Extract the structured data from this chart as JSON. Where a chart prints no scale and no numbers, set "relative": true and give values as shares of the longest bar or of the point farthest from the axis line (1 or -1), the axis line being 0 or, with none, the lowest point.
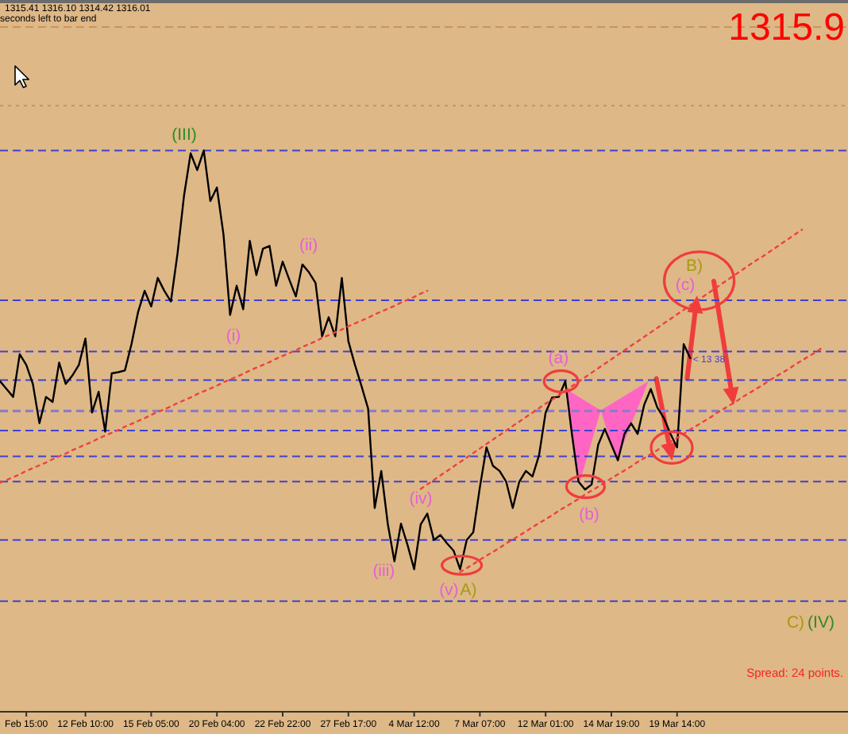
{
  "chart_data": {
    "type": "line",
    "relative": true,
    "marker": "none",
    "line_style": "solid",
    "categories": [
      null,
      null,
      null,
      null,
      "Feb 15:00",
      null,
      null,
      null,
      null,
      null,
      null,
      null,
      null,
      "12 Feb 10:00",
      null,
      null,
      null,
      null,
      null,
      null,
      null,
      null,
      null,
      "15 Feb 05:00",
      null,
      null,
      null,
      null,
      null,
      null,
      null,
      null,
      null,
      "20 Feb 04:00",
      null,
      null,
      null,
      null,
      null,
      null,
      null,
      null,
      null,
      "22 Feb 22:00",
      null,
      null,
      null,
      null,
      null,
      null,
      null,
      null,
      null,
      "27 Feb 17:00",
      null,
      null,
      null,
      null,
      null,
      null,
      null,
      null,
      null,
      "4 Mar 12:00",
      null,
      null,
      null,
      null,
      null,
      null,
      null,
      null,
      null,
      "7 Mar 07:00",
      null,
      null,
      null,
      null,
      null,
      null,
      null,
      null,
      null,
      "12 Mar 01:00",
      null,
      null,
      null,
      null,
      null,
      null,
      null,
      null,
      null,
      "14 Mar 19:00",
      null,
      null,
      null,
      null,
      null,
      null,
      null,
      null,
      null,
      "19 Mar 14:00",
      null,
      null,
      null,
      null,
      null,
      null,
      null,
      null,
      null,
      null,
      null,
      null,
      null,
      null,
      null,
      null,
      null,
      null,
      null,
      null,
      null,
      null,
      null,
      null,
      null,
      null
    ],
    "series": [
      {
        "color": "#000000",
        "values": [
          0.589,
          0.575,
          0.561,
          0.637,
          0.618,
          0.584,
          0.514,
          0.561,
          0.552,
          0.622,
          0.584,
          0.599,
          0.618,
          0.665,
          0.533,
          0.57,
          0.499,
          0.603,
          0.605,
          0.608,
          0.655,
          0.712,
          0.75,
          0.722,
          0.773,
          0.75,
          0.731,
          0.816,
          0.92,
          0.995,
          0.965,
          1.0,
          0.91,
          0.934,
          0.85,
          0.707,
          0.759,
          0.717,
          0.839,
          0.778,
          0.825,
          0.83,
          0.759,
          0.802,
          0.77,
          0.74,
          0.797,
          0.783,
          0.764,
          0.669,
          0.703,
          0.669,
          0.773,
          0.66,
          0.618,
          0.58,
          0.54,
          0.363,
          0.429,
          0.334,
          0.268,
          0.335,
          0.297,
          0.254,
          0.334,
          0.353,
          0.306,
          0.315,
          0.3,
          0.287,
          0.254,
          0.306,
          0.32,
          0.4,
          0.471,
          0.438,
          0.429,
          0.41,
          0.363,
          0.41,
          0.429,
          0.419,
          0.457,
          0.533,
          0.56,
          0.561,
          0.589,
          0.495,
          0.41,
          0.396,
          0.405,
          0.476,
          0.504,
          0.476,
          0.448,
          0.495,
          0.514,
          0.495,
          0.547,
          0.575,
          0.542,
          0.523,
          0.495,
          0.471,
          0.655,
          0.63,
          null,
          null,
          null,
          null,
          null,
          null,
          null,
          null,
          null,
          null,
          null,
          null,
          null,
          null,
          null,
          null,
          null,
          null,
          null,
          null,
          null,
          null,
          null,
          null
        ]
      },
      {
        "type": "line",
        "color": "#f04040",
        "line_style": "dotted",
        "values": [
          0.408,
          0.413,
          0.418,
          0.423,
          0.429,
          0.434,
          0.439,
          0.444,
          0.45,
          0.455,
          0.46,
          0.466,
          0.471,
          0.476,
          0.481,
          0.487,
          0.492,
          0.497,
          0.502,
          0.508,
          0.513,
          0.518,
          0.523,
          0.529,
          0.534,
          0.539,
          0.544,
          0.55,
          0.555,
          0.56,
          0.566,
          0.571,
          0.576,
          0.581,
          0.587,
          0.592,
          0.597,
          0.602,
          0.608,
          0.613,
          0.618,
          0.623,
          0.629,
          0.634,
          0.639,
          0.644,
          0.65,
          0.655,
          0.66,
          0.666,
          0.671,
          0.676,
          0.681,
          0.687,
          0.692,
          0.697,
          0.702,
          0.708,
          0.713,
          0.718,
          0.723,
          0.729,
          0.734,
          0.739,
          0.745,
          0.75,
          null,
          null,
          null,
          null,
          null,
          null,
          null,
          null,
          null,
          null,
          null,
          null,
          null,
          null,
          null,
          null,
          null,
          null,
          null,
          null,
          null,
          null,
          null,
          null,
          null,
          null,
          null,
          null,
          null,
          null,
          null,
          null,
          null,
          null,
          null,
          null,
          null,
          null,
          null,
          null,
          null,
          null,
          null,
          null,
          null,
          null,
          null,
          null,
          null,
          null,
          null,
          null,
          null,
          null,
          null,
          null,
          null,
          null,
          null,
          null,
          null,
          null,
          null,
          null
        ]
      },
      {
        "type": "line",
        "color": "#f04040",
        "line_style": "dotted",
        "values": [
          null,
          null,
          null,
          null,
          null,
          null,
          null,
          null,
          null,
          null,
          null,
          null,
          null,
          null,
          null,
          null,
          null,
          null,
          null,
          null,
          null,
          null,
          null,
          null,
          null,
          null,
          null,
          null,
          null,
          null,
          null,
          null,
          null,
          null,
          null,
          null,
          null,
          null,
          null,
          null,
          null,
          null,
          null,
          null,
          null,
          null,
          null,
          null,
          null,
          null,
          null,
          null,
          null,
          null,
          null,
          null,
          null,
          null,
          null,
          null,
          null,
          null,
          null,
          null,
          0.397,
          0.405,
          0.413,
          0.421,
          0.429,
          0.437,
          0.445,
          0.453,
          0.461,
          0.469,
          0.477,
          0.485,
          0.493,
          0.501,
          0.509,
          0.517,
          0.525,
          0.533,
          0.541,
          0.549,
          0.556,
          0.564,
          0.572,
          0.58,
          0.588,
          0.596,
          0.604,
          0.612,
          0.62,
          0.628,
          0.636,
          0.644,
          0.652,
          0.66,
          0.668,
          0.676,
          0.684,
          0.692,
          0.7,
          0.708,
          0.716,
          0.724,
          0.732,
          0.74,
          0.748,
          0.756,
          0.764,
          0.772,
          0.78,
          0.788,
          0.796,
          0.804,
          0.811,
          0.819,
          0.827,
          0.835,
          0.843,
          0.851,
          0.859,
          null,
          null,
          null,
          null,
          null,
          null,
          null
        ]
      },
      {
        "type": "line",
        "color": "#f04040",
        "line_style": "dotted",
        "values": [
          null,
          null,
          null,
          null,
          null,
          null,
          null,
          null,
          null,
          null,
          null,
          null,
          null,
          null,
          null,
          null,
          null,
          null,
          null,
          null,
          null,
          null,
          null,
          null,
          null,
          null,
          null,
          null,
          null,
          null,
          null,
          null,
          null,
          null,
          null,
          null,
          null,
          null,
          null,
          null,
          null,
          null,
          null,
          null,
          null,
          null,
          null,
          null,
          null,
          null,
          null,
          null,
          null,
          null,
          null,
          null,
          null,
          null,
          null,
          null,
          null,
          null,
          null,
          null,
          null,
          null,
          null,
          null,
          null,
          null,
          0.249,
          0.256,
          0.263,
          0.271,
          0.278,
          0.285,
          0.292,
          0.3,
          0.307,
          0.314,
          0.321,
          0.329,
          0.336,
          0.343,
          0.35,
          0.358,
          0.365,
          0.372,
          0.379,
          0.387,
          0.394,
          0.401,
          0.408,
          0.416,
          0.423,
          0.43,
          0.437,
          0.445,
          0.452,
          0.459,
          0.466,
          0.474,
          0.481,
          0.488,
          0.495,
          0.503,
          0.51,
          0.517,
          0.524,
          0.532,
          0.539,
          0.546,
          0.553,
          0.561,
          0.568,
          0.575,
          0.582,
          0.59,
          0.597,
          0.604,
          0.611,
          0.619,
          0.626,
          0.633,
          0.64,
          0.648,
          null,
          null,
          null,
          null
        ]
      }
    ],
    "ref_lines": [
      {
        "axis": "y",
        "value": 1.22,
        "color": "#c8955a",
        "line_style": "dashed"
      },
      {
        "axis": "y",
        "value": 1.08,
        "color": "#c8955a",
        "line_style": "dotted"
      },
      {
        "axis": "y",
        "value": 1.0,
        "color": "#4040d0",
        "line_style": "dashed"
      },
      {
        "axis": "y",
        "value": 0.733,
        "color": "#4040d0",
        "line_style": "dashed"
      },
      {
        "axis": "y",
        "value": 0.642,
        "color": "#4040d0",
        "line_style": "dashed"
      },
      {
        "axis": "y",
        "value": 0.591,
        "color": "#4040d0",
        "line_style": "dashed"
      },
      {
        "axis": "y",
        "value": 0.536,
        "color": "#8c7cc8",
        "line_style": "dashed"
      },
      {
        "axis": "y",
        "value": 0.501,
        "color": "#4040d0",
        "line_style": "dashed"
      },
      {
        "axis": "y",
        "value": 0.455,
        "color": "#4040d0",
        "line_style": "dashed"
      },
      {
        "axis": "y",
        "value": 0.41,
        "color": "#4040d0",
        "line_style": "dashed"
      },
      {
        "axis": "y",
        "value": 0.306,
        "color": "#4040d0",
        "line_style": "dashed"
      },
      {
        "axis": "y",
        "value": 0.197,
        "color": "#4040d0",
        "line_style": "dashed"
      }
    ],
    "annotations": [
      "1315.41 1316.10 1314.42 1316.01",
      "seconds left to bar end",
      "1315.9",
      "Spread: 24 points.",
      "(III)",
      "(i)",
      "(ii)",
      "(iii)",
      "(iv)",
      "(v)",
      "A)",
      "(a)",
      "(b)",
      "(c)",
      "B)",
      "C)",
      "(IV)",
      "< 13 38"
    ]
  }
}
